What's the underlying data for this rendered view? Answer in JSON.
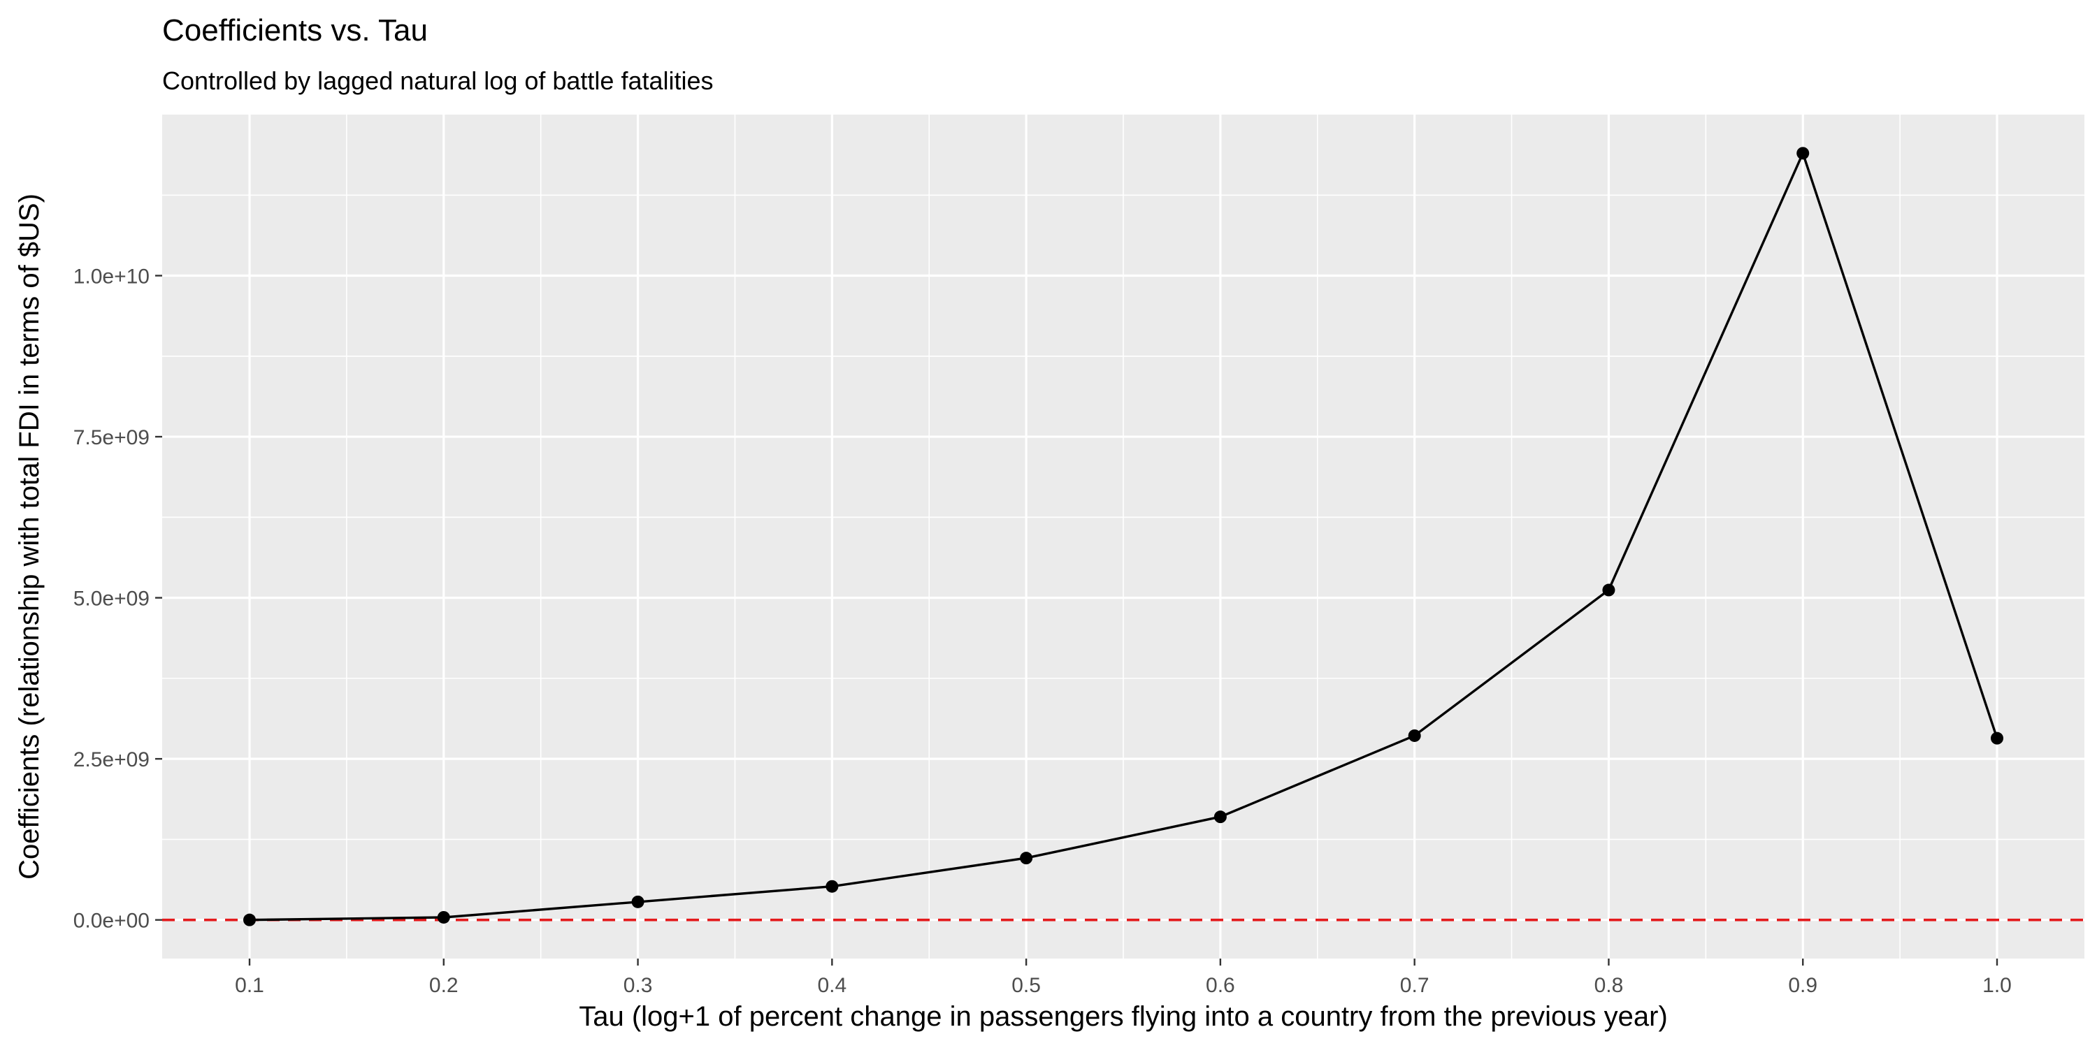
{
  "chart_data": {
    "type": "line",
    "title": "Coefficients vs. Tau",
    "subtitle": "Controlled by lagged natural log of battle fatalities",
    "xlabel": "Tau (log+1 of percent change in passengers flying into a country from the previous year)",
    "ylabel": "Coefficients (relationship with total FDI in terms of $US)",
    "x_ticks": [
      "0.1",
      "0.2",
      "0.3",
      "0.4",
      "0.5",
      "0.6",
      "0.7",
      "0.8",
      "0.9",
      "1.0"
    ],
    "y_ticks": [
      "0.0e+00",
      "2.5e+09",
      "5.0e+09",
      "7.5e+09",
      "1.0e+10"
    ],
    "x_tick_values": [
      0.1,
      0.2,
      0.3,
      0.4,
      0.5,
      0.6,
      0.7,
      0.8,
      0.9,
      1.0
    ],
    "y_tick_values": [
      0,
      2500000000,
      5000000000,
      7500000000,
      10000000000
    ],
    "xlim": [
      0.055,
      1.045
    ],
    "ylim": [
      -600000000,
      12500000000
    ],
    "grid": true,
    "x": [
      0.1,
      0.2,
      0.3,
      0.4,
      0.5,
      0.6,
      0.7,
      0.8,
      0.9,
      1.0
    ],
    "y": [
      0,
      40000000,
      280000000,
      520000000,
      960000000,
      1600000000,
      2860000000,
      5120000000,
      11900000000,
      2820000000
    ],
    "reference_line": {
      "y": 0,
      "style": "dashed",
      "color": "#e41a1c"
    },
    "colors": {
      "panel_background": "#ebebeb",
      "grid": "#ffffff",
      "line": "#000000",
      "points": "#000000"
    }
  }
}
